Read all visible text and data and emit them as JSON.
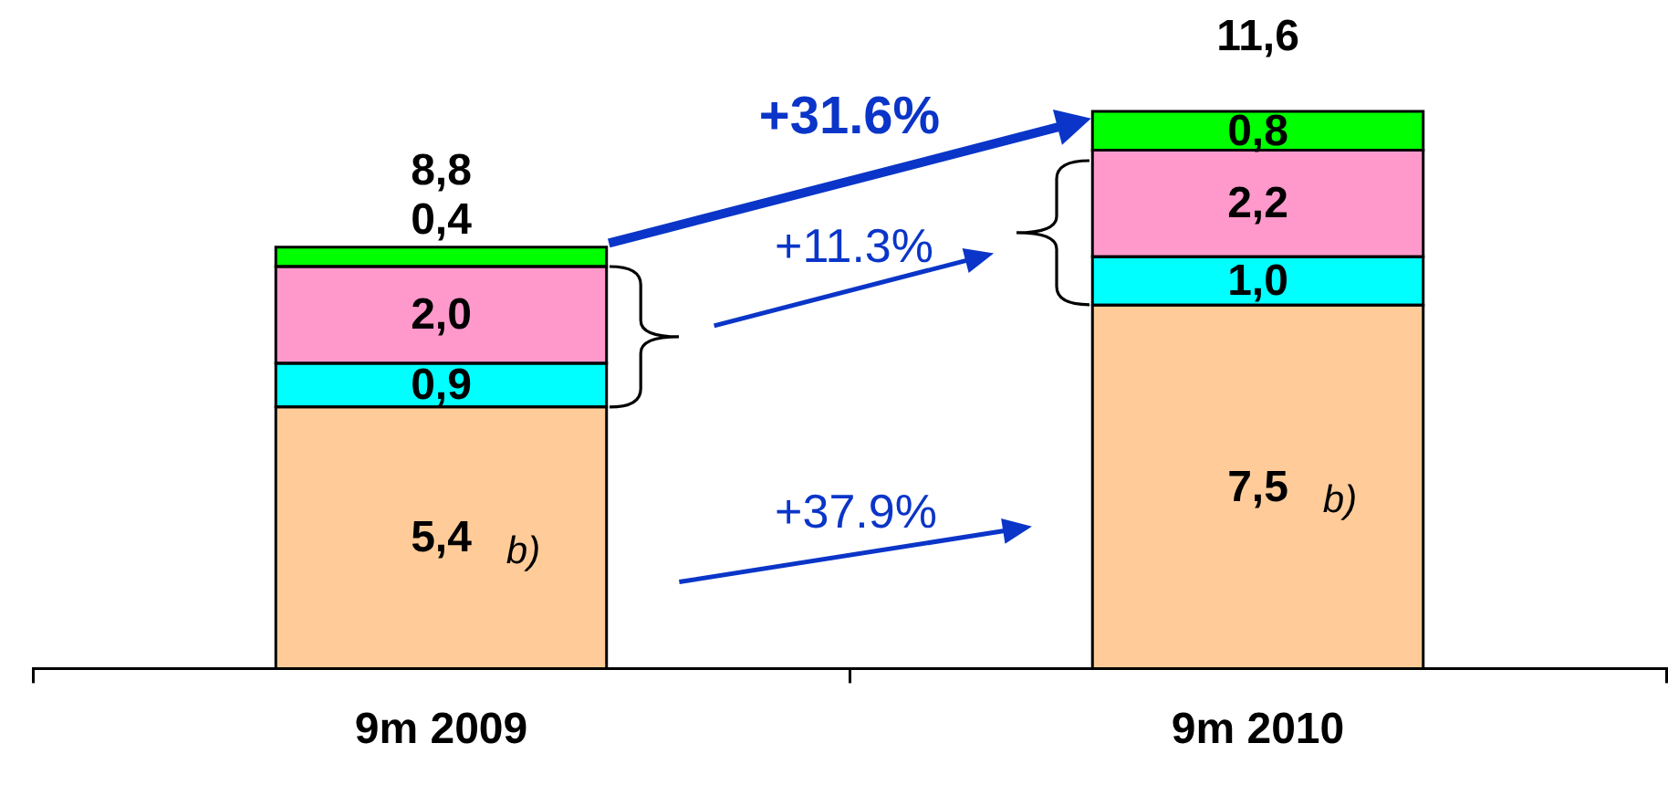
{
  "chart_data": {
    "type": "bar",
    "categories": [
      "9m 2009",
      "9m 2010"
    ],
    "stacked": true,
    "series": [
      {
        "color": "#ffcc99",
        "values": [
          5.4,
          7.5
        ],
        "value_labels": [
          "5,4",
          "7,5"
        ]
      },
      {
        "color": "#00ffff",
        "values": [
          0.9,
          1.0
        ],
        "value_labels": [
          "0,9",
          "1,0"
        ]
      },
      {
        "color": "#ff99cc",
        "values": [
          2.0,
          2.2
        ],
        "value_labels": [
          "2,0",
          "2,2"
        ]
      },
      {
        "color": "#00ff00",
        "values": [
          0.4,
          0.8
        ],
        "value_labels": [
          "0,4",
          "0,8"
        ]
      }
    ],
    "totals": [
      "8,8",
      "11,6"
    ],
    "annotations": [
      "+31.6%",
      "+11.3%",
      "+37.9%",
      "b)",
      "b)"
    ]
  }
}
